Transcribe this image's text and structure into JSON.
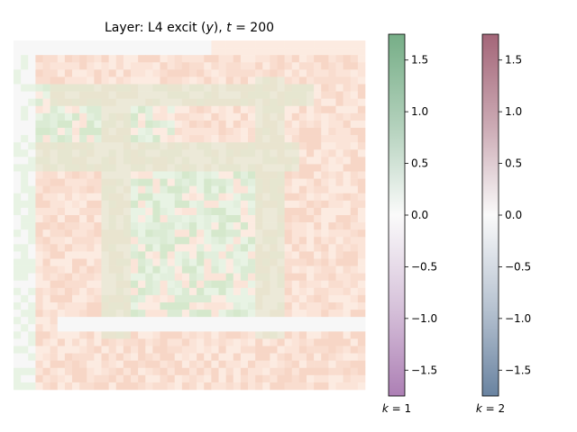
{
  "chart_data": [
    {
      "type": "heatmap",
      "title": "Layer: L4 excit (y), t = 200",
      "title_parts": {
        "prefix": "Layer: L4 excit (",
        "var": "y",
        "middle": "), ",
        "tvar": "t",
        "rest": " = 200"
      },
      "grid_rows": 48,
      "grid_cols": 48,
      "value_range": [
        -1.75,
        1.75
      ],
      "layers": [
        {
          "k": 1,
          "colormap": "PRGn",
          "description_values": "low magnitude, mostly 0 to 0.5"
        },
        {
          "k": 2,
          "colormap": "RdBu_r",
          "description_values": "low magnitude, mostly 0 to 0.5"
        }
      ]
    },
    {
      "type": "heatmap",
      "colorbar": true,
      "label": "k = 1",
      "label_parts": {
        "var": "k",
        "rest": " = 1"
      },
      "colormap": "PRGn",
      "colors": {
        "low": "#762a83",
        "mid": "#f7f7f7",
        "high": "#1b7837"
      },
      "ylim": [
        -1.75,
        1.75
      ],
      "ticks": [
        1.5,
        1.0,
        0.5,
        0.0,
        -0.5,
        -1.0,
        -1.5
      ],
      "tick_labels": [
        "1.5",
        "1.0",
        "0.5",
        "0.0",
        "−0.5",
        "−1.0",
        "−1.5"
      ]
    },
    {
      "type": "heatmap",
      "colorbar": true,
      "label": "k = 2",
      "label_parts": {
        "var": "k",
        "rest": " = 2"
      },
      "colormap": "RdBu_r",
      "colors": {
        "low": "#053061",
        "mid": "#f7f7f7",
        "high": "#67001f"
      },
      "ylim": [
        -1.75,
        1.75
      ],
      "ticks": [
        1.5,
        1.0,
        0.5,
        0.0,
        -0.5,
        -1.0,
        -1.5
      ],
      "tick_labels": [
        "1.5",
        "1.0",
        "0.5",
        "0.0",
        "−0.5",
        "−1.0",
        "−1.5"
      ]
    }
  ]
}
